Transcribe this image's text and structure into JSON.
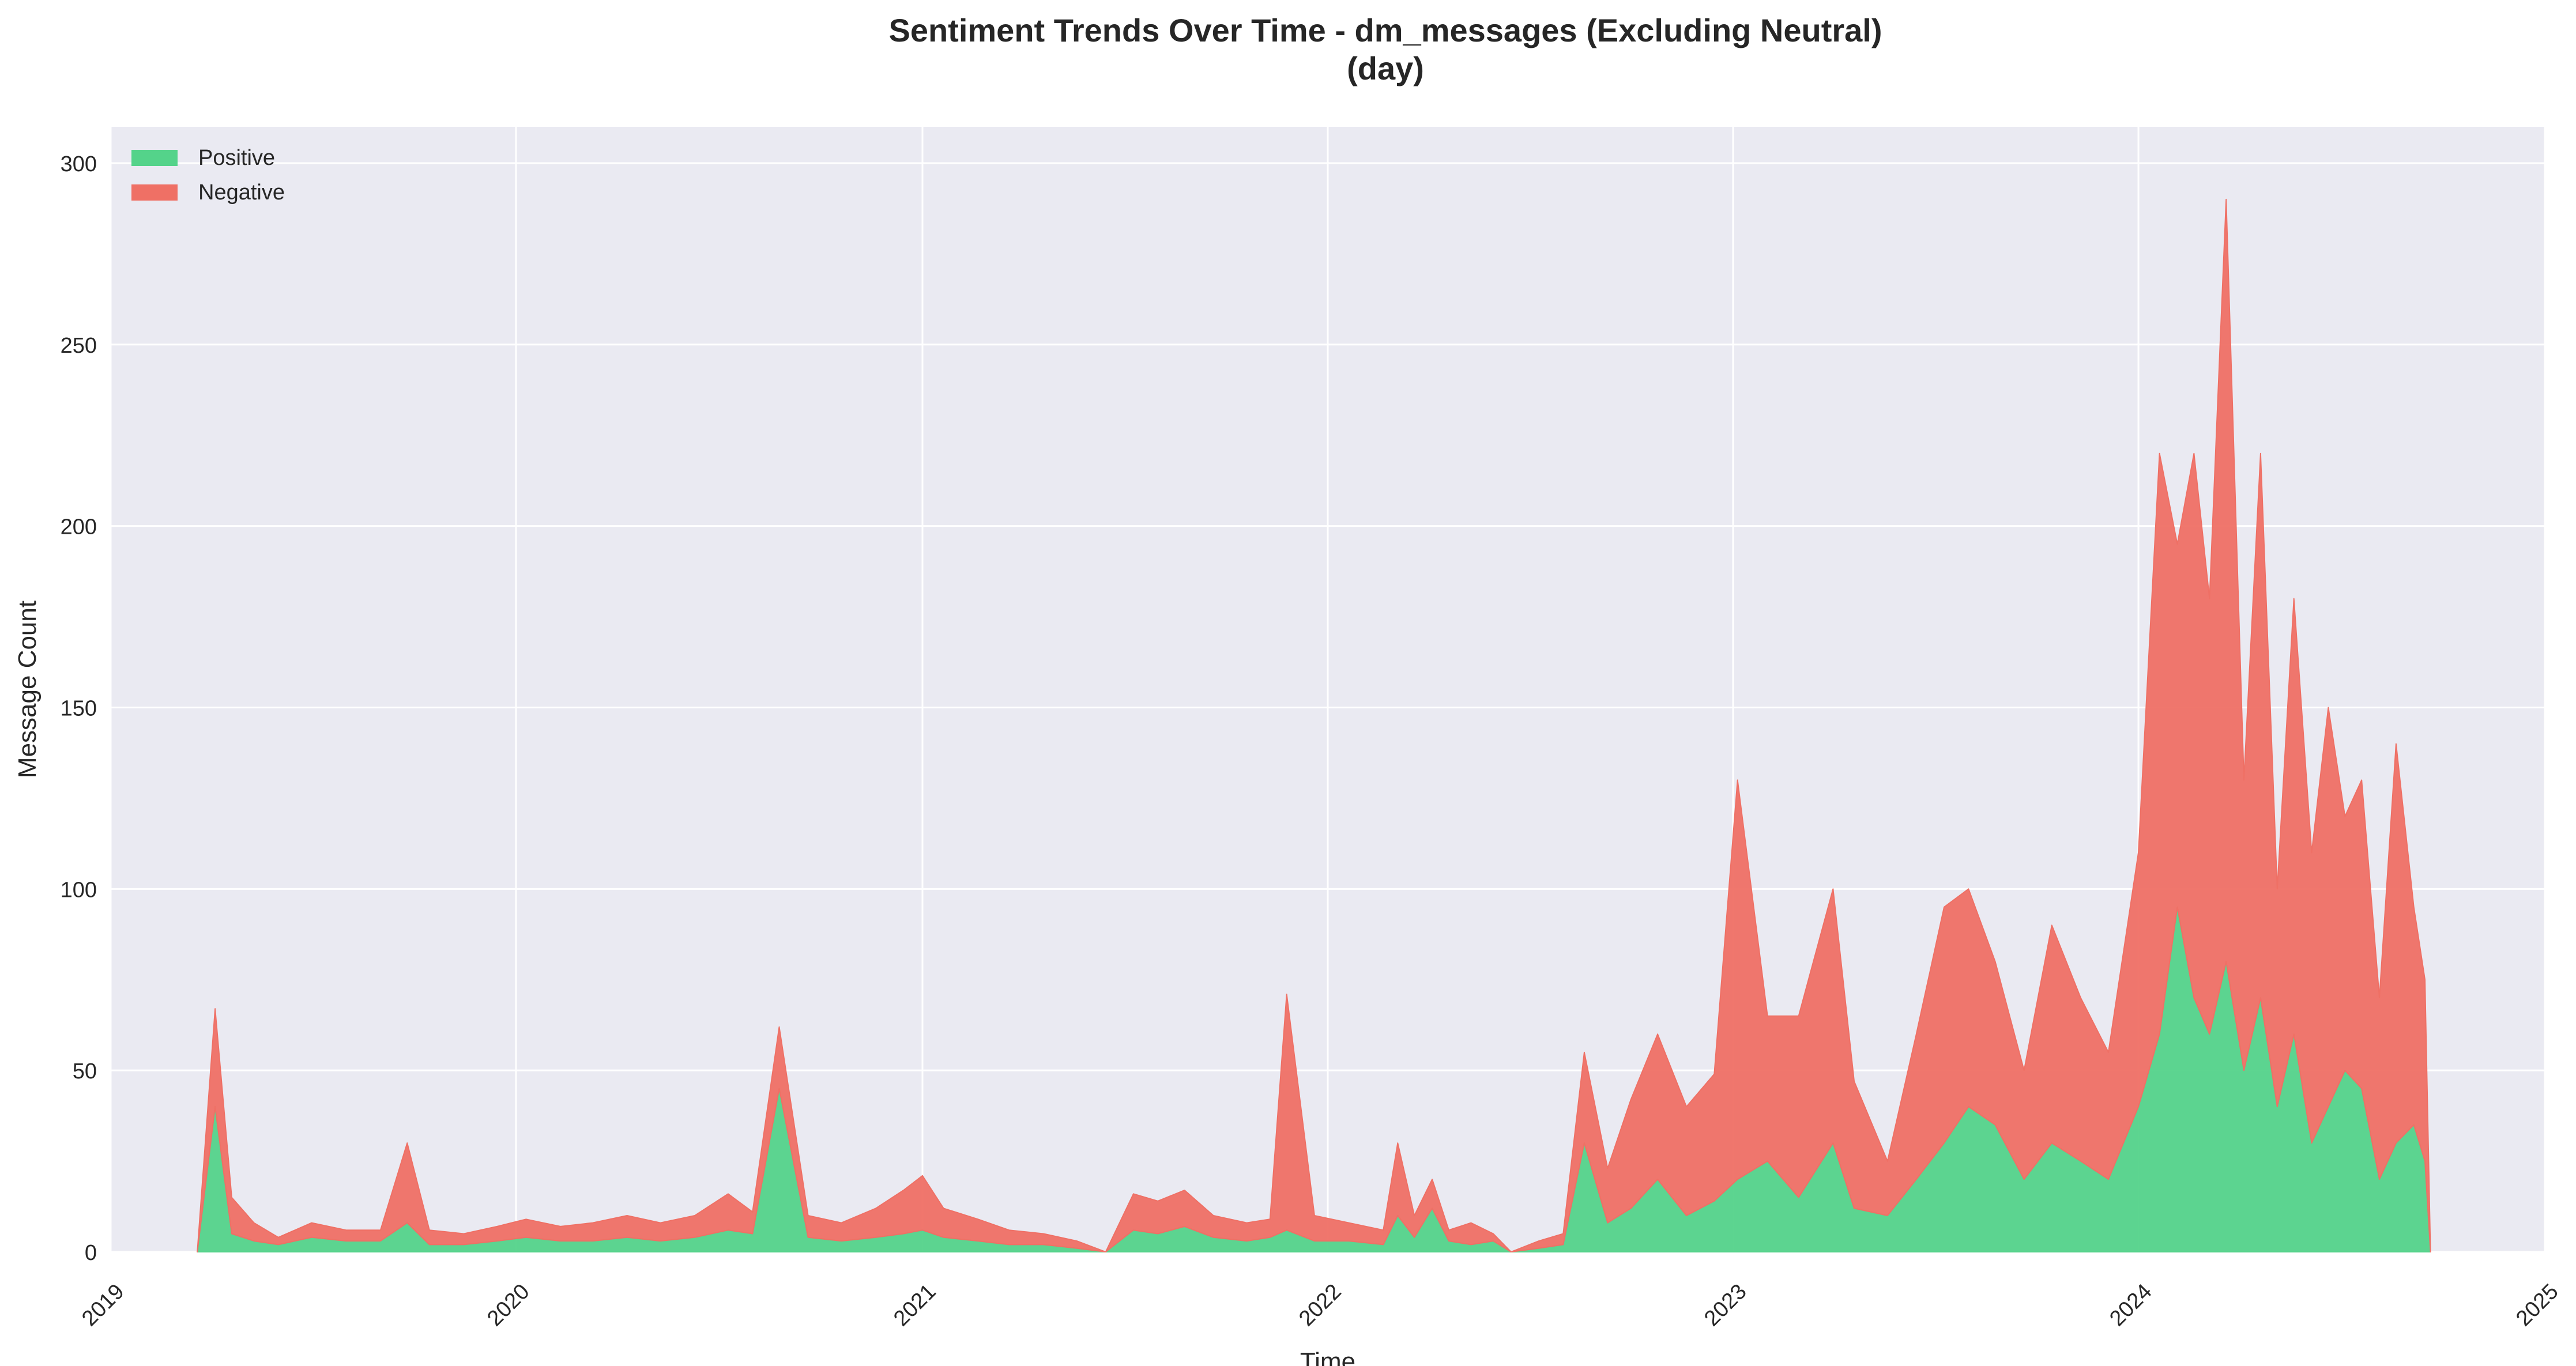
{
  "colors": {
    "positive": "#54d38a",
    "negative": "#ef7065",
    "plot_background": "#eaeaf2",
    "grid": "#ffffff"
  },
  "chart_data": {
    "type": "area",
    "stacked": true,
    "title": "Sentiment Trends Over Time - dm_messages (Excluding Neutral)",
    "subtitle": "(day)",
    "xlabel": "Time",
    "ylabel": "Message Count",
    "xlim": [
      "2019-01-01",
      "2025-01-01"
    ],
    "ylim": [
      0,
      310
    ],
    "x_ticks": [
      "2019",
      "2020",
      "2021",
      "2022",
      "2023",
      "2024",
      "2025"
    ],
    "y_ticks": [
      "0",
      "50",
      "100",
      "150",
      "200",
      "250",
      "300"
    ],
    "grid": true,
    "legend_position": "top-left",
    "x": [
      "2019-03-20",
      "2019-04-05",
      "2019-04-20",
      "2019-05-10",
      "2019-06-01",
      "2019-07-01",
      "2019-08-01",
      "2019-09-01",
      "2019-09-25",
      "2019-10-15",
      "2019-11-15",
      "2019-12-15",
      "2020-01-10",
      "2020-02-10",
      "2020-03-10",
      "2020-04-10",
      "2020-05-10",
      "2020-06-10",
      "2020-07-10",
      "2020-08-01",
      "2020-08-25",
      "2020-09-20",
      "2020-10-20",
      "2020-11-20",
      "2020-12-15",
      "2021-01-01",
      "2021-01-20",
      "2021-02-20",
      "2021-03-20",
      "2021-04-20",
      "2021-05-20",
      "2021-06-15",
      "2021-07-10",
      "2021-08-01",
      "2021-08-25",
      "2021-09-20",
      "2021-10-20",
      "2021-11-10",
      "2021-11-25",
      "2021-12-20",
      "2022-01-20",
      "2022-02-20",
      "2022-03-05",
      "2022-03-20",
      "2022-04-05",
      "2022-04-20",
      "2022-05-10",
      "2022-05-30",
      "2022-06-15",
      "2022-07-10",
      "2022-08-01",
      "2022-08-20",
      "2022-09-10",
      "2022-10-01",
      "2022-10-25",
      "2022-11-20",
      "2022-12-15",
      "2023-01-05",
      "2023-02-01",
      "2023-03-01",
      "2023-04-01",
      "2023-04-20",
      "2023-05-20",
      "2023-06-15",
      "2023-07-10",
      "2023-08-01",
      "2023-08-25",
      "2023-09-20",
      "2023-10-15",
      "2023-11-10",
      "2023-12-05",
      "2024-01-01",
      "2024-01-20",
      "2024-02-05",
      "2024-02-20",
      "2024-03-05",
      "2024-03-20",
      "2024-04-05",
      "2024-04-20",
      "2024-05-05",
      "2024-05-20",
      "2024-06-05",
      "2024-06-20",
      "2024-07-05",
      "2024-07-20",
      "2024-08-05",
      "2024-08-20",
      "2024-09-05",
      "2024-09-15",
      "2024-09-20"
    ],
    "series": [
      {
        "name": "Positive",
        "values": [
          0,
          40,
          5,
          3,
          2,
          4,
          3,
          3,
          8,
          2,
          2,
          3,
          4,
          3,
          3,
          4,
          3,
          4,
          6,
          5,
          45,
          4,
          3,
          4,
          5,
          6,
          4,
          3,
          2,
          2,
          1,
          0,
          6,
          5,
          7,
          4,
          3,
          4,
          6,
          3,
          3,
          2,
          10,
          4,
          12,
          3,
          2,
          3,
          0,
          1,
          2,
          30,
          8,
          12,
          20,
          10,
          14,
          20,
          25,
          15,
          30,
          12,
          10,
          20,
          30,
          40,
          35,
          20,
          30,
          25,
          20,
          40,
          60,
          95,
          70,
          60,
          80,
          50,
          70,
          40,
          60,
          30,
          40,
          50,
          45,
          20,
          30,
          35,
          25,
          0
        ]
      },
      {
        "name": "Negative",
        "values": [
          0,
          27,
          10,
          5,
          2,
          4,
          3,
          3,
          22,
          4,
          3,
          4,
          5,
          4,
          5,
          6,
          5,
          6,
          10,
          6,
          17,
          6,
          5,
          8,
          12,
          15,
          8,
          6,
          4,
          3,
          2,
          0,
          10,
          9,
          10,
          6,
          5,
          5,
          65,
          7,
          5,
          4,
          20,
          6,
          8,
          3,
          6,
          2,
          0,
          2,
          3,
          25,
          15,
          30,
          40,
          30,
          35,
          110,
          40,
          50,
          70,
          35,
          15,
          40,
          65,
          60,
          45,
          30,
          60,
          45,
          35,
          70,
          160,
          100,
          150,
          120,
          210,
          80,
          150,
          60,
          120,
          80,
          110,
          70,
          85,
          50,
          110,
          60,
          50,
          0
        ]
      }
    ]
  }
}
